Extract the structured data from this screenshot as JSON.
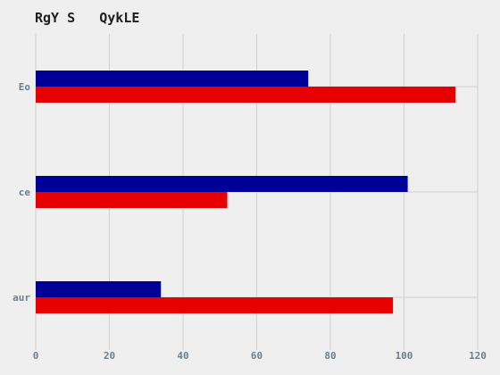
{
  "chart_data": {
    "type": "bar",
    "orientation": "horizontal",
    "title": "RgY S   QykLE",
    "xlabel": "",
    "ylabel": "",
    "categories": [
      "Eo",
      "ce",
      "aur"
    ],
    "series": [
      {
        "color": "#000099",
        "values": [
          74,
          101,
          34
        ]
      },
      {
        "color": "#e60000",
        "values": [
          114,
          52,
          97
        ]
      }
    ],
    "xlim": [
      0,
      120
    ],
    "xticks": [
      0,
      20,
      40,
      60,
      80,
      100,
      120
    ],
    "grid": true,
    "legend": "none"
  }
}
